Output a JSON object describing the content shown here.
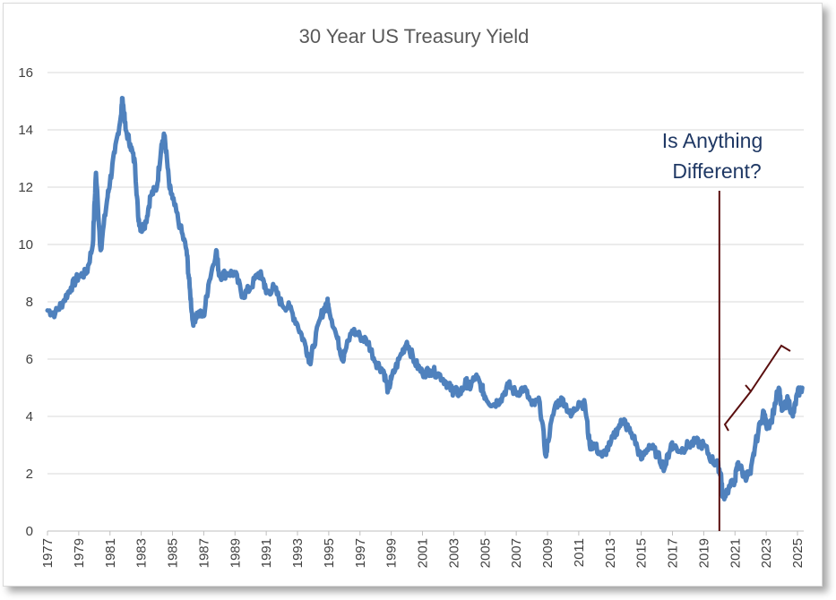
{
  "chart_data": {
    "type": "line",
    "title": "30 Year US Treasury Yield",
    "xlabel": "",
    "ylabel": "",
    "xlim": [
      1977,
      2025.4
    ],
    "ylim": [
      0,
      16
    ],
    "y_ticks": [
      "0",
      "2",
      "4",
      "6",
      "8",
      "10",
      "12",
      "14",
      "16"
    ],
    "x_ticks": [
      "1977",
      "1979",
      "1981",
      "1983",
      "1985",
      "1987",
      "1989",
      "1991",
      "1993",
      "1995",
      "1997",
      "1999",
      "2001",
      "2003",
      "2005",
      "2007",
      "2009",
      "2011",
      "2013",
      "2015",
      "2017",
      "2019",
      "2021",
      "2023",
      "2025"
    ],
    "grid": "horizontal",
    "legend": "none",
    "series": [
      {
        "color": "#4f81bd",
        "points": [
          [
            1977.0,
            7.7
          ],
          [
            1977.5,
            7.6
          ],
          [
            1978.0,
            8.0
          ],
          [
            1978.5,
            8.5
          ],
          [
            1979.0,
            8.9
          ],
          [
            1979.5,
            9.0
          ],
          [
            1979.9,
            10.0
          ],
          [
            1980.1,
            12.5
          ],
          [
            1980.4,
            9.8
          ],
          [
            1980.8,
            11.5
          ],
          [
            1981.0,
            12.2
          ],
          [
            1981.3,
            13.2
          ],
          [
            1981.7,
            14.5
          ],
          [
            1981.8,
            15.1
          ],
          [
            1982.0,
            14.0
          ],
          [
            1982.3,
            13.5
          ],
          [
            1982.6,
            12.8
          ],
          [
            1982.8,
            11.0
          ],
          [
            1983.0,
            10.5
          ],
          [
            1983.3,
            10.8
          ],
          [
            1983.6,
            11.7
          ],
          [
            1984.0,
            12.0
          ],
          [
            1984.3,
            13.5
          ],
          [
            1984.5,
            13.8
          ],
          [
            1984.8,
            12.0
          ],
          [
            1985.0,
            11.6
          ],
          [
            1985.5,
            10.6
          ],
          [
            1985.9,
            9.8
          ],
          [
            1986.1,
            8.5
          ],
          [
            1986.3,
            7.3
          ],
          [
            1986.6,
            7.6
          ],
          [
            1987.0,
            7.5
          ],
          [
            1987.3,
            8.6
          ],
          [
            1987.8,
            9.8
          ],
          [
            1988.0,
            8.9
          ],
          [
            1988.5,
            9.0
          ],
          [
            1989.0,
            9.0
          ],
          [
            1989.5,
            8.2
          ],
          [
            1990.0,
            8.5
          ],
          [
            1990.5,
            9.0
          ],
          [
            1990.8,
            8.8
          ],
          [
            1991.0,
            8.3
          ],
          [
            1991.5,
            8.5
          ],
          [
            1992.0,
            7.9
          ],
          [
            1992.5,
            7.8
          ],
          [
            1993.0,
            7.2
          ],
          [
            1993.5,
            6.5
          ],
          [
            1993.8,
            5.9
          ],
          [
            1994.0,
            6.4
          ],
          [
            1994.5,
            7.5
          ],
          [
            1994.9,
            8.0
          ],
          [
            1995.0,
            7.8
          ],
          [
            1995.5,
            6.8
          ],
          [
            1995.9,
            6.0
          ],
          [
            1996.0,
            6.2
          ],
          [
            1996.5,
            7.0
          ],
          [
            1997.0,
            6.8
          ],
          [
            1997.5,
            6.6
          ],
          [
            1998.0,
            5.9
          ],
          [
            1998.5,
            5.6
          ],
          [
            1998.8,
            4.9
          ],
          [
            1999.0,
            5.3
          ],
          [
            1999.5,
            6.0
          ],
          [
            2000.0,
            6.6
          ],
          [
            2000.5,
            5.9
          ],
          [
            2001.0,
            5.5
          ],
          [
            2001.5,
            5.6
          ],
          [
            2002.0,
            5.5
          ],
          [
            2002.5,
            5.2
          ],
          [
            2002.9,
            4.9
          ],
          [
            2003.0,
            4.9
          ],
          [
            2003.4,
            4.8
          ],
          [
            2003.8,
            5.2
          ],
          [
            2004.0,
            5.0
          ],
          [
            2004.4,
            5.4
          ],
          [
            2004.8,
            5.0
          ],
          [
            2005.0,
            4.7
          ],
          [
            2005.5,
            4.4
          ],
          [
            2006.0,
            4.6
          ],
          [
            2006.5,
            5.1
          ],
          [
            2007.0,
            4.8
          ],
          [
            2007.5,
            5.0
          ],
          [
            2008.0,
            4.4
          ],
          [
            2008.5,
            4.5
          ],
          [
            2008.9,
            2.6
          ],
          [
            2009.0,
            3.1
          ],
          [
            2009.5,
            4.4
          ],
          [
            2010.0,
            4.6
          ],
          [
            2010.5,
            4.0
          ],
          [
            2011.0,
            4.5
          ],
          [
            2011.4,
            4.4
          ],
          [
            2011.7,
            3.0
          ],
          [
            2012.0,
            3.0
          ],
          [
            2012.5,
            2.6
          ],
          [
            2013.0,
            3.0
          ],
          [
            2013.5,
            3.6
          ],
          [
            2013.9,
            3.9
          ],
          [
            2014.0,
            3.7
          ],
          [
            2014.5,
            3.3
          ],
          [
            2015.0,
            2.5
          ],
          [
            2015.5,
            3.0
          ],
          [
            2016.0,
            2.7
          ],
          [
            2016.5,
            2.2
          ],
          [
            2016.9,
            3.0
          ],
          [
            2017.0,
            3.0
          ],
          [
            2017.5,
            2.8
          ],
          [
            2018.0,
            3.0
          ],
          [
            2018.5,
            3.1
          ],
          [
            2019.0,
            3.0
          ],
          [
            2019.5,
            2.5
          ],
          [
            2019.9,
            2.3
          ],
          [
            2020.1,
            2.0
          ],
          [
            2020.2,
            1.2
          ],
          [
            2020.5,
            1.4
          ],
          [
            2021.0,
            1.8
          ],
          [
            2021.2,
            2.4
          ],
          [
            2021.6,
            1.9
          ],
          [
            2022.0,
            2.0
          ],
          [
            2022.3,
            3.0
          ],
          [
            2022.8,
            4.2
          ],
          [
            2023.0,
            3.7
          ],
          [
            2023.3,
            3.8
          ],
          [
            2023.8,
            5.0
          ],
          [
            2024.0,
            4.2
          ],
          [
            2024.4,
            4.6
          ],
          [
            2024.7,
            4.0
          ],
          [
            2025.0,
            4.8
          ],
          [
            2025.3,
            5.0
          ]
        ]
      }
    ],
    "annotations": [
      {
        "text_line1": "Is Anything",
        "text_line2": "Different?",
        "vline_x": 2020.0,
        "color": "#1f3864",
        "line_color": "#5a0f0f"
      }
    ]
  }
}
